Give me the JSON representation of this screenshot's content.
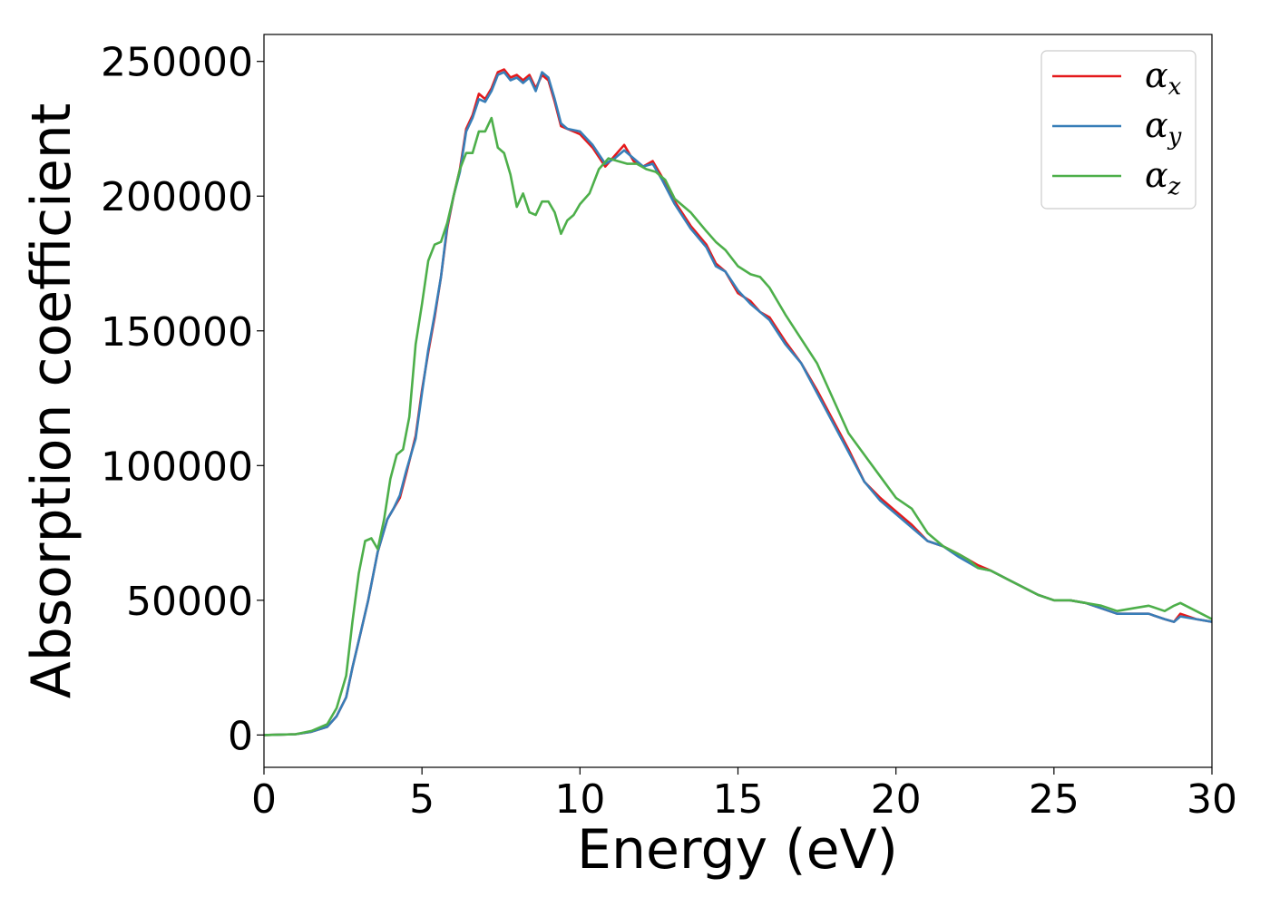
{
  "chart_data": {
    "type": "line",
    "xlabel": "Energy (eV)",
    "ylabel": "Absorption coefficient",
    "xlim": [
      0,
      30
    ],
    "ylim": [
      -12000,
      260000
    ],
    "xticks": [
      0,
      5,
      10,
      15,
      20,
      25,
      30
    ],
    "xtick_labels": [
      "0",
      "5",
      "10",
      "15",
      "20",
      "25",
      "30"
    ],
    "yticks": [
      0,
      50000,
      100000,
      150000,
      200000,
      250000
    ],
    "ytick_labels": [
      "0",
      "50000",
      "100000",
      "150000",
      "200000",
      "250000"
    ],
    "grid": false,
    "legend_position": "top-right",
    "series": [
      {
        "name": "αx",
        "label_base": "α",
        "label_sub": "x",
        "color": "#e41a1c",
        "x": [
          0,
          1,
          1.5,
          2,
          2.3,
          2.6,
          2.8,
          3,
          3.3,
          3.6,
          3.9,
          4.1,
          4.3,
          4.5,
          4.8,
          5,
          5.2,
          5.4,
          5.6,
          5.8,
          6,
          6.2,
          6.4,
          6.6,
          6.8,
          7,
          7.2,
          7.4,
          7.6,
          7.8,
          8,
          8.2,
          8.4,
          8.6,
          8.8,
          9,
          9.2,
          9.4,
          9.6,
          10,
          10.4,
          10.8,
          11.1,
          11.4,
          11.7,
          12,
          12.3,
          12.6,
          13,
          13.5,
          14,
          14.3,
          14.6,
          15,
          15.4,
          15.7,
          16,
          16.5,
          17,
          17.5,
          18,
          18.5,
          19,
          19.5,
          20,
          20.5,
          21,
          21.5,
          22,
          22.3,
          22.6,
          23,
          23.5,
          24,
          24.5,
          25,
          25.5,
          26,
          26.5,
          27,
          27.5,
          28,
          28.5,
          28.8,
          29,
          29.5,
          30
        ],
        "y": [
          0,
          300,
          1200,
          3000,
          7000,
          14000,
          25000,
          35000,
          50000,
          68000,
          80000,
          84000,
          88000,
          97000,
          111000,
          128000,
          142000,
          155000,
          170000,
          188000,
          200000,
          210000,
          225000,
          230000,
          238000,
          236000,
          240000,
          246000,
          247000,
          244000,
          245000,
          243000,
          245000,
          240000,
          245000,
          243000,
          235000,
          226000,
          225000,
          223000,
          218000,
          211000,
          215000,
          219000,
          213000,
          211000,
          213000,
          207000,
          198000,
          189000,
          182000,
          175000,
          172000,
          164000,
          161000,
          157000,
          155000,
          146000,
          138000,
          128000,
          117000,
          106000,
          94000,
          88000,
          83000,
          78000,
          72000,
          70000,
          67000,
          65000,
          63000,
          61000,
          58000,
          55000,
          52000,
          50000,
          50000,
          49000,
          47000,
          45000,
          45000,
          45000,
          43000,
          42000,
          45000,
          43000,
          42000
        ]
      },
      {
        "name": "αy",
        "label_base": "α",
        "label_sub": "y",
        "color": "#377eb8",
        "x": [
          0,
          1,
          1.5,
          2,
          2.3,
          2.6,
          2.8,
          3,
          3.3,
          3.6,
          3.9,
          4.1,
          4.3,
          4.5,
          4.8,
          5,
          5.2,
          5.4,
          5.6,
          5.8,
          6,
          6.2,
          6.4,
          6.6,
          6.8,
          7,
          7.2,
          7.4,
          7.6,
          7.8,
          8,
          8.2,
          8.4,
          8.6,
          8.8,
          9,
          9.2,
          9.4,
          9.6,
          10,
          10.4,
          10.8,
          11.1,
          11.4,
          11.7,
          12,
          12.3,
          12.6,
          13,
          13.5,
          14,
          14.3,
          14.6,
          15,
          15.4,
          15.7,
          16,
          16.5,
          17,
          17.5,
          18,
          18.5,
          19,
          19.5,
          20,
          20.5,
          21,
          21.5,
          22,
          22.3,
          22.6,
          23,
          23.5,
          24,
          24.5,
          25,
          25.5,
          26,
          26.5,
          27,
          27.5,
          28,
          28.5,
          28.8,
          29,
          29.5,
          30
        ],
        "y": [
          0,
          300,
          1200,
          3000,
          7000,
          14000,
          25000,
          35000,
          50000,
          68000,
          80000,
          84000,
          89000,
          98000,
          110000,
          127000,
          143000,
          156000,
          170000,
          189000,
          200000,
          209000,
          224000,
          229000,
          236000,
          235000,
          239000,
          245000,
          246000,
          243000,
          244000,
          242000,
          244000,
          239000,
          246000,
          244000,
          236000,
          227000,
          225000,
          224000,
          219000,
          212000,
          214000,
          217000,
          214000,
          211000,
          212000,
          206000,
          197000,
          188000,
          181000,
          174000,
          172000,
          165000,
          160000,
          157000,
          154000,
          145000,
          138000,
          127000,
          116000,
          105000,
          94000,
          87000,
          82000,
          77000,
          72000,
          70000,
          66000,
          64000,
          62000,
          61000,
          58000,
          55000,
          52000,
          50000,
          50000,
          49000,
          47000,
          45000,
          45000,
          45000,
          43000,
          42000,
          44000,
          43000,
          42000
        ]
      },
      {
        "name": "αz",
        "label_base": "α",
        "label_sub": "z",
        "color": "#4daf4a",
        "x": [
          0,
          1,
          1.5,
          2,
          2.3,
          2.6,
          2.8,
          3,
          3.2,
          3.4,
          3.6,
          3.8,
          4,
          4.2,
          4.4,
          4.6,
          4.8,
          5,
          5.2,
          5.4,
          5.6,
          5.8,
          6,
          6.2,
          6.4,
          6.6,
          6.8,
          7,
          7.2,
          7.4,
          7.6,
          7.8,
          8,
          8.2,
          8.4,
          8.6,
          8.8,
          9,
          9.2,
          9.4,
          9.6,
          9.8,
          10,
          10.3,
          10.6,
          10.9,
          11.2,
          11.5,
          11.8,
          12.1,
          12.4,
          12.7,
          13,
          13.5,
          14,
          14.3,
          14.6,
          15,
          15.4,
          15.7,
          16,
          16.5,
          17,
          17.5,
          18,
          18.5,
          19,
          19.5,
          20,
          20.5,
          21,
          21.5,
          22,
          22.3,
          22.6,
          23,
          23.5,
          24,
          24.5,
          25,
          25.5,
          26,
          26.5,
          27,
          27.5,
          28,
          28.5,
          28.8,
          29,
          29.5,
          30
        ],
        "y": [
          0,
          300,
          1500,
          4000,
          10000,
          22000,
          42000,
          60000,
          72000,
          73000,
          69000,
          80000,
          95000,
          104000,
          106000,
          118000,
          145000,
          160000,
          176000,
          182000,
          183000,
          190000,
          200000,
          210000,
          216000,
          216000,
          224000,
          224000,
          229000,
          218000,
          216000,
          208000,
          196000,
          201000,
          194000,
          193000,
          198000,
          198000,
          194000,
          186000,
          191000,
          193000,
          197000,
          201000,
          210000,
          214000,
          213000,
          212000,
          212000,
          210000,
          209000,
          206000,
          199000,
          194000,
          187000,
          183000,
          180000,
          174000,
          171000,
          170000,
          166000,
          156000,
          147000,
          138000,
          125000,
          112000,
          104000,
          96000,
          88000,
          84000,
          75000,
          70000,
          67000,
          65000,
          62000,
          61000,
          58000,
          55000,
          52000,
          50000,
          50000,
          49000,
          48000,
          46000,
          47000,
          48000,
          46000,
          48000,
          49000,
          46000,
          43000
        ]
      }
    ]
  }
}
